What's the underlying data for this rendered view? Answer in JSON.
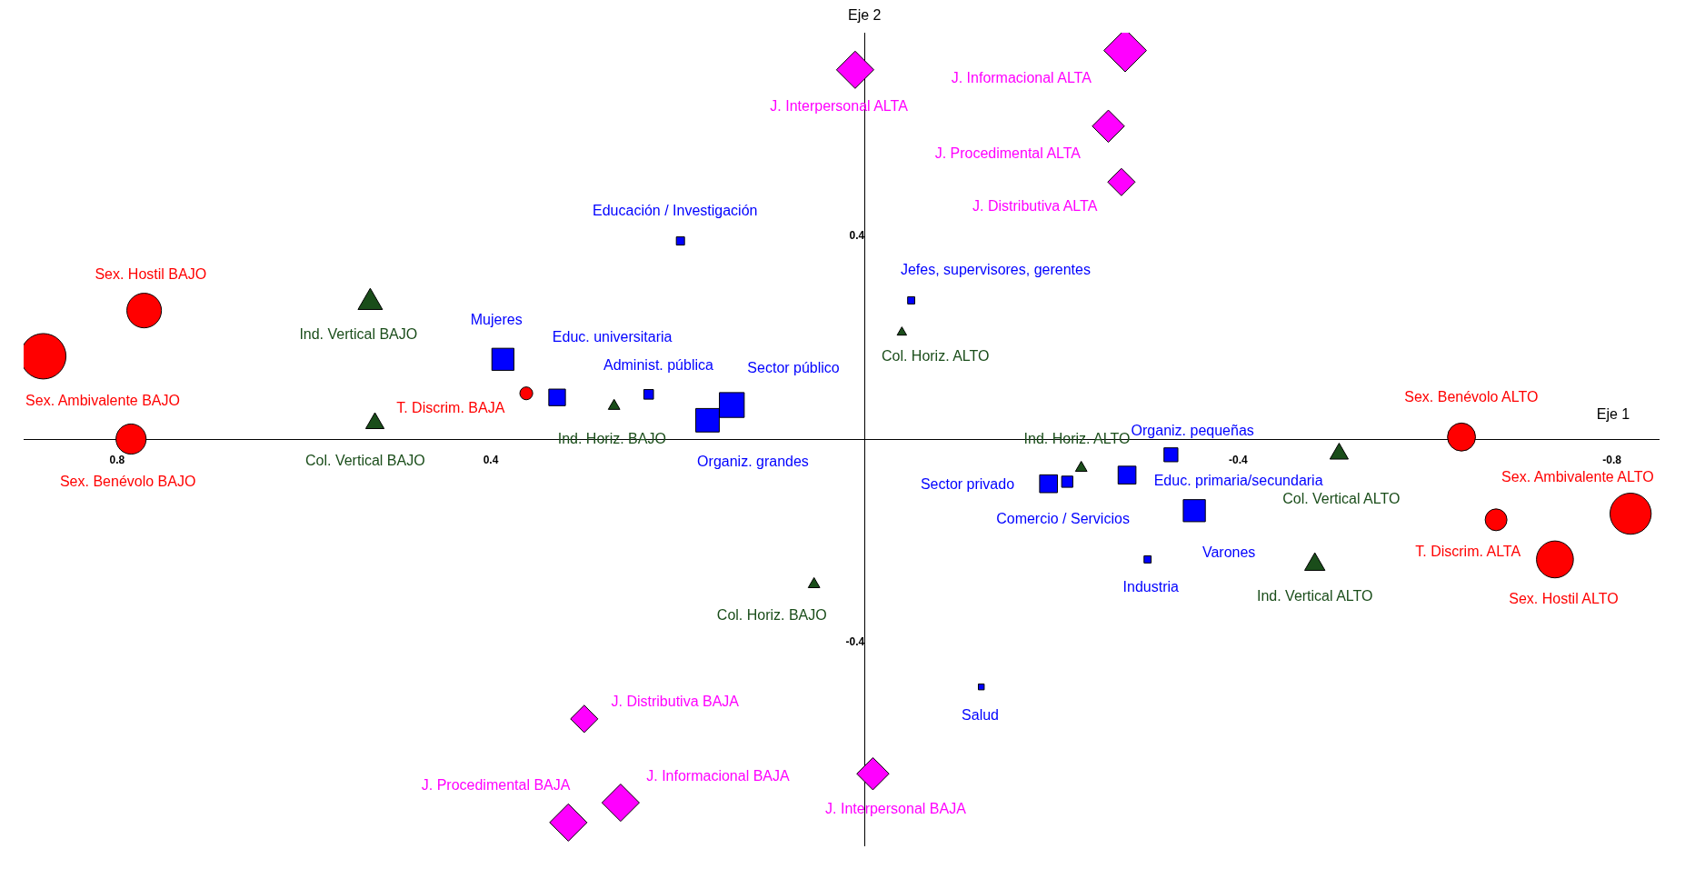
{
  "chart_data": {
    "type": "bubble",
    "xlabel": "Eje 1",
    "ylabel": "Eje 2",
    "xlim": [
      0.9,
      -0.85
    ],
    "ylim": [
      -0.8,
      0.8
    ],
    "xticks": [
      0.8,
      0.4,
      -0.4,
      -0.8
    ],
    "yticks": [
      0.4,
      -0.4
    ],
    "series": [
      {
        "color": "#ff00ff",
        "marker": "diamond",
        "x": [
          0.01,
          -0.279,
          -0.261,
          -0.275,
          0.3,
          0.261,
          0.317,
          -0.009
        ],
        "values": [
          0.727,
          0.765,
          0.616,
          0.506,
          -0.551,
          -0.716,
          -0.755,
          -0.659
        ],
        "sizes": [
          0.43,
          0.56,
          0.32,
          0.23,
          0.23,
          0.43,
          0.43,
          0.32
        ],
        "value_labels": [
          "J. Interpersonal ALTA",
          "J. Informacional ALTA",
          "J. Procedimental ALTA",
          "J. Distributiva ALTA",
          "J. Distributiva BAJA",
          "J. Informacional BAJA",
          "J. Procedimental BAJA",
          "J. Interpersonal BAJA"
        ]
      },
      {
        "color": "#ff0000",
        "marker": "circle",
        "x": [
          0.771,
          0.879,
          0.785,
          0.362,
          -0.639,
          -0.82,
          -0.676,
          -0.739
        ],
        "values": [
          0.253,
          0.163,
          0.0,
          0.09,
          0.004,
          -0.147,
          -0.159,
          -0.237
        ],
        "sizes": [
          0.58,
          1,
          0.44,
          0.08,
          0.38,
          0.82,
          0.23,
          0.66
        ],
        "value_labels": [
          "Sex. Hostil BAJO",
          "Sex. Ambivalente BAJO",
          "Sex. Benévolo BAJO",
          "T. Discrim. BAJA",
          "Sex. Benévolo ALTO",
          "Sex. Ambivalente ALTO",
          "T. Discrim. ALTA",
          "Sex. Hostil ALTO"
        ]
      },
      {
        "color": "#1a4d1a",
        "marker": "triangle",
        "x": [
          0.529,
          0.524,
          0.268,
          -0.04,
          -0.232,
          -0.508,
          -0.482,
          0.054
        ],
        "values": [
          0.269,
          0.031,
          0.065,
          0.21,
          -0.057,
          -0.029,
          -0.247,
          -0.286
        ],
        "sizes": [
          0.16,
          0.09,
          0.036,
          0.024,
          0.036,
          0.09,
          0.11,
          0.036
        ],
        "value_labels": [
          "Ind. Vertical BAJO",
          "Col. Vertical BAJO",
          "Ind. Horiz. BAJO",
          "Col. Horiz. ALTO",
          "Ind. Horiz. ALTO",
          "Col. Vertical ALTO",
          "Ind. Vertical ALTO",
          "Col. Horiz. BAJO"
        ]
      },
      {
        "color": "#0000ff",
        "marker": "square",
        "x": [
          0.197,
          -0.05,
          0.387,
          0.329,
          0.231,
          0.142,
          0.168,
          -0.281,
          -0.328,
          -0.197,
          -0.217,
          -0.353,
          -0.303,
          -0.125
        ],
        "values": [
          0.39,
          0.273,
          0.157,
          0.082,
          0.088,
          0.067,
          0.037,
          -0.071,
          -0.031,
          -0.088,
          -0.084,
          -0.141,
          -0.237,
          -0.488
        ],
        "sizes": [
          0.041,
          0.031,
          0.3,
          0.17,
          0.057,
          0.38,
          0.34,
          0.196,
          0.119,
          0.196,
          0.077,
          0.3,
          0.031,
          0.021
        ],
        "value_labels": [
          "Educación / Investigación",
          "Jefes, supervisores, gerentes",
          "Mujeres",
          "Educ. universitaria",
          "Administ. pública",
          "Sector público",
          "Organiz. grandes",
          "Educ. primaria/secundaria",
          "Organiz. pequeñas",
          "Sector privado",
          "Comercio / Servicios",
          "Varones",
          "Industria",
          "Salud"
        ]
      }
    ]
  }
}
